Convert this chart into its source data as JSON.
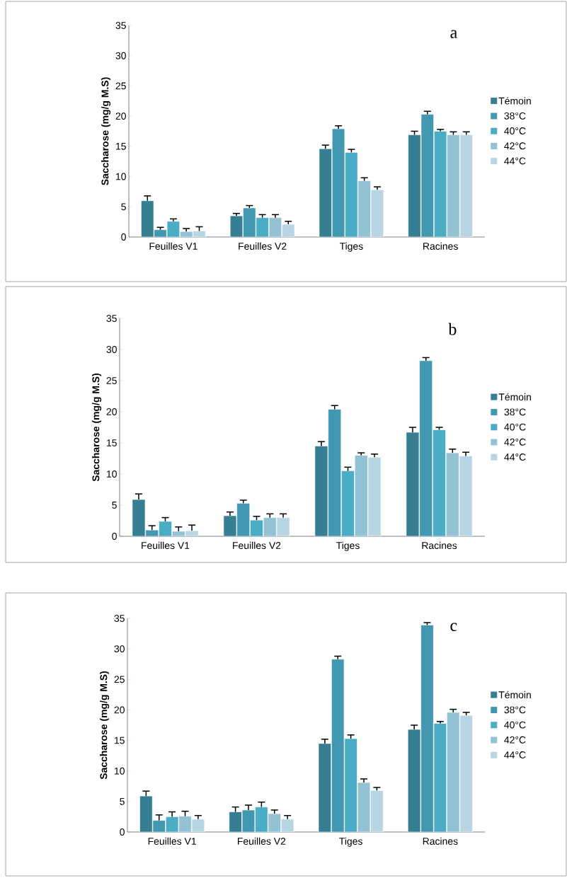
{
  "chart_data": [
    {
      "type": "bar",
      "ylabel": "Saccharose (mg/g M.S)",
      "categories": [
        "Feuilles V1",
        "Feuilles V2",
        "Tiges",
        "Racines"
      ],
      "ylim": [
        0,
        35
      ],
      "yticks": [
        0,
        5,
        10,
        15,
        20,
        25,
        30,
        35
      ],
      "legend": "right",
      "annotations": [
        "a"
      ],
      "series": [
        {
          "name": "Témoin",
          "color": "#367f93",
          "values": [
            6.0,
            3.5,
            14.6,
            16.9
          ],
          "errors": [
            0.8,
            0.4,
            0.6,
            0.6
          ]
        },
        {
          "name": "38°C",
          "color": "#4298b1",
          "values": [
            1.2,
            4.8,
            17.9,
            20.3
          ],
          "errors": [
            0.4,
            0.4,
            0.5,
            0.5
          ]
        },
        {
          "name": "40°C",
          "color": "#4bacc6",
          "values": [
            2.6,
            3.2,
            14.0,
            17.5
          ],
          "errors": [
            0.4,
            0.5,
            0.5,
            0.3
          ]
        },
        {
          "name": "42°C",
          "color": "#93c2d5",
          "values": [
            0.9,
            3.2,
            9.3,
            16.9
          ],
          "errors": [
            0.5,
            0.5,
            0.5,
            0.5
          ]
        },
        {
          "name": "44°C",
          "color": "#b7d5e2",
          "values": [
            1.0,
            2.1,
            7.8,
            16.9
          ],
          "errors": [
            0.7,
            0.5,
            0.5,
            0.5
          ]
        }
      ]
    },
    {
      "type": "bar",
      "ylabel": "Saccharose (mg/g M.S)",
      "categories": [
        "Feuilles V1",
        "Feuilles V2",
        "Tiges",
        "Racines"
      ],
      "ylim": [
        0,
        35
      ],
      "yticks": [
        0,
        5,
        10,
        15,
        20,
        25,
        30,
        35
      ],
      "legend": "right",
      "annotations": [
        "b"
      ],
      "series": [
        {
          "name": "Témoin",
          "color": "#367f93",
          "values": [
            5.9,
            3.3,
            14.5,
            16.7
          ],
          "errors": [
            0.9,
            0.6,
            0.7,
            0.8
          ]
        },
        {
          "name": "38°C",
          "color": "#4298b1",
          "values": [
            1.0,
            5.3,
            20.4,
            28.2
          ],
          "errors": [
            0.7,
            0.5,
            0.6,
            0.5
          ]
        },
        {
          "name": "40°C",
          "color": "#4bacc6",
          "values": [
            2.4,
            2.6,
            10.5,
            17.1
          ],
          "errors": [
            0.6,
            0.6,
            0.6,
            0.4
          ]
        },
        {
          "name": "42°C",
          "color": "#93c2d5",
          "values": [
            0.8,
            3.0,
            13.0,
            13.4
          ],
          "errors": [
            0.7,
            0.6,
            0.4,
            0.6
          ]
        },
        {
          "name": "44°C",
          "color": "#b7d5e2",
          "values": [
            0.9,
            3.0,
            12.7,
            12.9
          ],
          "errors": [
            0.9,
            0.6,
            0.5,
            0.6
          ]
        }
      ]
    },
    {
      "type": "bar",
      "ylabel": "Saccharose (mg/g M.S)",
      "categories": [
        "Feuilles V1",
        "Feuilles V2",
        "Tiges",
        "Racines"
      ],
      "ylim": [
        0,
        35
      ],
      "yticks": [
        0,
        5,
        10,
        15,
        20,
        25,
        30,
        35
      ],
      "legend": "right",
      "annotations": [
        "c"
      ],
      "series": [
        {
          "name": "Témoin",
          "color": "#367f93",
          "values": [
            5.9,
            3.3,
            14.5,
            16.8
          ],
          "errors": [
            0.8,
            0.8,
            0.7,
            0.7
          ]
        },
        {
          "name": "38°C",
          "color": "#4298b1",
          "values": [
            1.9,
            3.6,
            28.3,
            33.9
          ],
          "errors": [
            0.9,
            0.8,
            0.5,
            0.4
          ]
        },
        {
          "name": "40°C",
          "color": "#4bacc6",
          "values": [
            2.5,
            4.1,
            15.3,
            17.8
          ],
          "errors": [
            0.8,
            0.8,
            0.6,
            0.3
          ]
        },
        {
          "name": "42°C",
          "color": "#93c2d5",
          "values": [
            2.6,
            3.0,
            8.1,
            19.6
          ],
          "errors": [
            0.8,
            0.6,
            0.6,
            0.5
          ]
        },
        {
          "name": "44°C",
          "color": "#b7d5e2",
          "values": [
            2.1,
            2.1,
            6.8,
            19.1
          ],
          "errors": [
            0.6,
            0.6,
            0.5,
            0.5
          ]
        }
      ]
    }
  ]
}
